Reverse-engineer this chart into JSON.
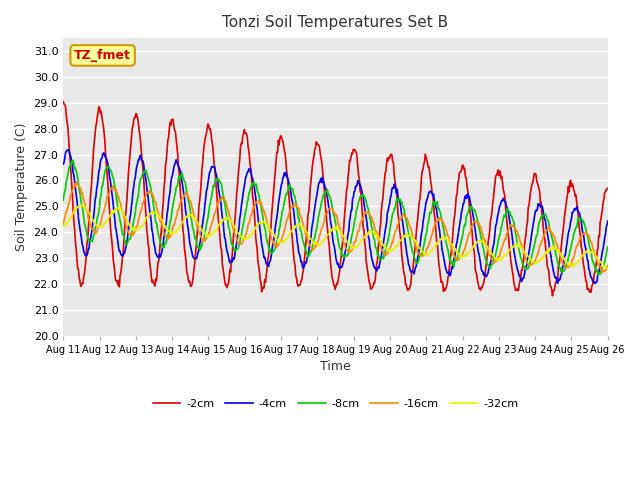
{
  "title": "Tonzi Soil Temperatures Set B",
  "xlabel": "Time",
  "ylabel": "Soil Temperature (C)",
  "annotation_text": "TZ_fmet",
  "annotation_color": "#cc0000",
  "annotation_bg": "#ffff99",
  "annotation_border": "#cc9900",
  "ylim": [
    20.0,
    31.5
  ],
  "yticks": [
    20.0,
    21.0,
    22.0,
    23.0,
    24.0,
    25.0,
    26.0,
    27.0,
    28.0,
    29.0,
    30.0,
    31.0
  ],
  "plot_bg": "#e8e8e8",
  "fig_bg": "#ffffff",
  "grid_color": "#ffffff",
  "line_colors": {
    "-2cm": "#dd0000",
    "-4cm": "#0000ee",
    "-8cm": "#00cc00",
    "-16cm": "#ff8800",
    "-32cm": "#eeee00"
  },
  "legend_labels": [
    "-2cm",
    "-4cm",
    "-8cm",
    "-16cm",
    "-32cm"
  ],
  "xtick_labels": [
    "Aug 11",
    "Aug 12",
    "Aug 13",
    "Aug 14",
    "Aug 15",
    "Aug 16",
    "Aug 17",
    "Aug 18",
    "Aug 19",
    "Aug 20",
    "Aug 21",
    "Aug 22",
    "Aug 23",
    "Aug 24",
    "Aug 25",
    "Aug 26"
  ],
  "n_days": 15,
  "start_day": 11
}
